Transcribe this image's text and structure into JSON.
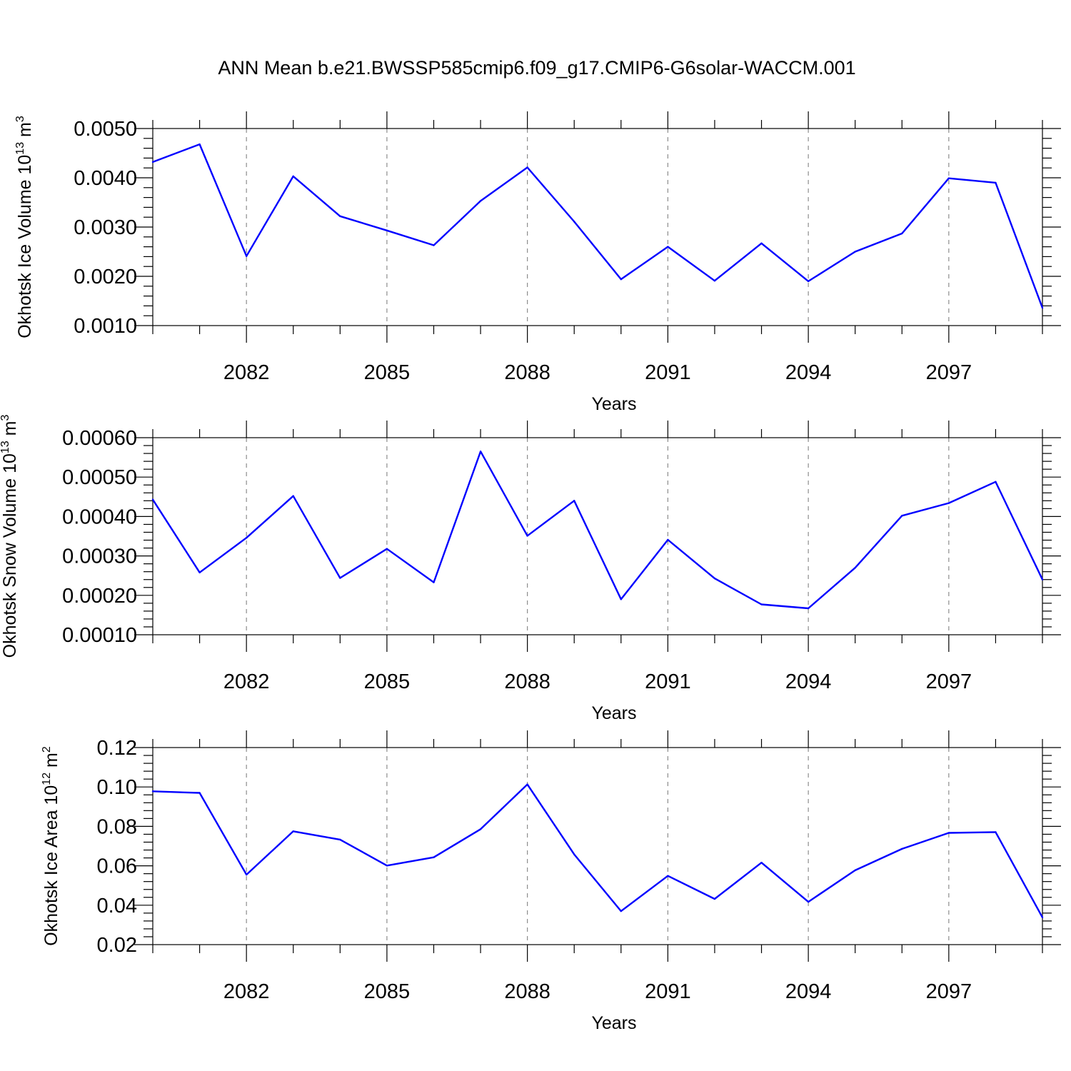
{
  "figure": {
    "title": "ANN Mean b.e21.BWSSP585cmip6.f09_g17.CMIP6-G6solar-WACCM.001",
    "series_color": "#0000ff"
  },
  "chart_data": [
    {
      "type": "line",
      "panel": "top",
      "xlabel": "Years",
      "ylabel": "Okhotsk Ice Volume 10",
      "ylabel_exp": "13",
      "ylabel_unit": " m",
      "ylabel_unit_exp": "3",
      "xlim": [
        2080,
        2099
      ],
      "ylim": [
        0.001,
        0.005
      ],
      "yticks": [
        0.001,
        0.002,
        0.003,
        0.004,
        0.005
      ],
      "ytick_labels": [
        "0.0010",
        "0.0020",
        "0.0030",
        "0.0040",
        "0.0050"
      ],
      "yminor_step": 0.0002,
      "xticks": [
        2082,
        2085,
        2088,
        2091,
        2094,
        2097
      ],
      "xtick_labels": [
        "2082",
        "2085",
        "2088",
        "2091",
        "2094",
        "2097"
      ],
      "xminor": [
        2080,
        2081,
        2083,
        2084,
        2086,
        2087,
        2089,
        2090,
        2092,
        2093,
        2095,
        2096,
        2098,
        2099
      ],
      "grid": "x-major dashed",
      "x": [
        2080,
        2081,
        2082,
        2083,
        2084,
        2085,
        2086,
        2087,
        2088,
        2089,
        2090,
        2091,
        2092,
        2093,
        2094,
        2095,
        2096,
        2097,
        2098,
        2099
      ],
      "y": [
        0.00432,
        0.00468,
        0.00241,
        0.00403,
        0.00322,
        0.00293,
        0.00263,
        0.00353,
        0.00421,
        0.00311,
        0.00194,
        0.0026,
        0.00191,
        0.00267,
        0.0019,
        0.0025,
        0.00287,
        0.00399,
        0.0039,
        0.00136
      ]
    },
    {
      "type": "line",
      "panel": "middle",
      "xlabel": "Years",
      "ylabel": "Okhotsk Snow Volume 10",
      "ylabel_exp": "13",
      "ylabel_unit": " m",
      "ylabel_unit_exp": "3",
      "xlim": [
        2080,
        2099
      ],
      "ylim": [
        0.0001,
        0.0006
      ],
      "yticks": [
        0.0001,
        0.0002,
        0.0003,
        0.0004,
        0.0005,
        0.0006
      ],
      "ytick_labels": [
        "0.00010",
        "0.00020",
        "0.00030",
        "0.00040",
        "0.00050",
        "0.00060"
      ],
      "yminor_step": 2e-05,
      "xticks": [
        2082,
        2085,
        2088,
        2091,
        2094,
        2097
      ],
      "xtick_labels": [
        "2082",
        "2085",
        "2088",
        "2091",
        "2094",
        "2097"
      ],
      "xminor": [
        2080,
        2081,
        2083,
        2084,
        2086,
        2087,
        2089,
        2090,
        2092,
        2093,
        2095,
        2096,
        2098,
        2099
      ],
      "grid": "x-major dashed",
      "x": [
        2080,
        2081,
        2082,
        2083,
        2084,
        2085,
        2086,
        2087,
        2088,
        2089,
        2090,
        2091,
        2092,
        2093,
        2094,
        2095,
        2096,
        2097,
        2098,
        2099
      ],
      "y": [
        0.000443,
        0.000258,
        0.000346,
        0.000452,
        0.000244,
        0.000318,
        0.000233,
        0.000565,
        0.000351,
        0.00044,
        0.00019,
        0.000341,
        0.000243,
        0.000177,
        0.000167,
        0.00027,
        0.000402,
        0.000434,
        0.000488,
        0.00024
      ]
    },
    {
      "type": "line",
      "panel": "bottom",
      "xlabel": "Years",
      "ylabel": "Okhotsk Ice Area 10",
      "ylabel_exp": "12",
      "ylabel_unit": " m",
      "ylabel_unit_exp": "2",
      "xlim": [
        2080,
        2099
      ],
      "ylim": [
        0.02,
        0.12
      ],
      "yticks": [
        0.02,
        0.04,
        0.06,
        0.08,
        0.1,
        0.12
      ],
      "ytick_labels": [
        "0.02",
        "0.04",
        "0.06",
        "0.08",
        "0.10",
        "0.12"
      ],
      "yminor_step": 0.004,
      "xticks": [
        2082,
        2085,
        2088,
        2091,
        2094,
        2097
      ],
      "xtick_labels": [
        "2082",
        "2085",
        "2088",
        "2091",
        "2094",
        "2097"
      ],
      "xminor": [
        2080,
        2081,
        2083,
        2084,
        2086,
        2087,
        2089,
        2090,
        2092,
        2093,
        2095,
        2096,
        2098,
        2099
      ],
      "grid": "x-major dashed",
      "x": [
        2080,
        2081,
        2082,
        2083,
        2084,
        2085,
        2086,
        2087,
        2088,
        2089,
        2090,
        2091,
        2092,
        2093,
        2094,
        2095,
        2096,
        2097,
        2098,
        2099
      ],
      "y": [
        0.0978,
        0.097,
        0.0555,
        0.0775,
        0.0733,
        0.0601,
        0.0643,
        0.0786,
        0.1013,
        0.0658,
        0.037,
        0.0549,
        0.0432,
        0.0616,
        0.0417,
        0.0577,
        0.0686,
        0.0767,
        0.0771,
        0.0338
      ]
    }
  ]
}
